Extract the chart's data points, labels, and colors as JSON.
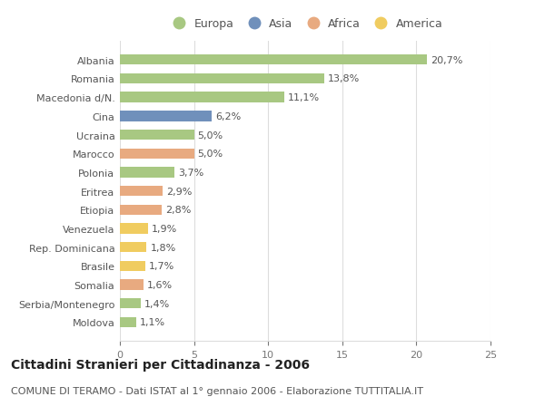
{
  "countries": [
    "Albania",
    "Romania",
    "Macedonia d/N.",
    "Cina",
    "Ucraina",
    "Marocco",
    "Polonia",
    "Eritrea",
    "Etiopia",
    "Venezuela",
    "Rep. Dominicana",
    "Brasile",
    "Somalia",
    "Serbia/Montenegro",
    "Moldova"
  ],
  "values": [
    20.7,
    13.8,
    11.1,
    6.2,
    5.0,
    5.0,
    3.7,
    2.9,
    2.8,
    1.9,
    1.8,
    1.7,
    1.6,
    1.4,
    1.1
  ],
  "labels": [
    "20,7%",
    "13,8%",
    "11,1%",
    "6,2%",
    "5,0%",
    "5,0%",
    "3,7%",
    "2,9%",
    "2,8%",
    "1,9%",
    "1,8%",
    "1,7%",
    "1,6%",
    "1,4%",
    "1,1%"
  ],
  "continents": [
    "Europa",
    "Europa",
    "Europa",
    "Asia",
    "Europa",
    "Africa",
    "Europa",
    "Africa",
    "Africa",
    "America",
    "America",
    "America",
    "Africa",
    "Europa",
    "Europa"
  ],
  "colors": {
    "Europa": "#a8c882",
    "Asia": "#7090bb",
    "Africa": "#e8aa80",
    "America": "#f0cc60"
  },
  "xlim": [
    0,
    25
  ],
  "xticks": [
    0,
    5,
    10,
    15,
    20,
    25
  ],
  "title": "Cittadini Stranieri per Cittadinanza - 2006",
  "subtitle": "COMUNE DI TERAMO - Dati ISTAT al 1° gennaio 2006 - Elaborazione TUTTITALIA.IT",
  "background_color": "#ffffff",
  "grid_color": "#dddddd",
  "bar_height": 0.55,
  "label_fontsize": 8,
  "tick_fontsize": 8,
  "title_fontsize": 10,
  "subtitle_fontsize": 8
}
